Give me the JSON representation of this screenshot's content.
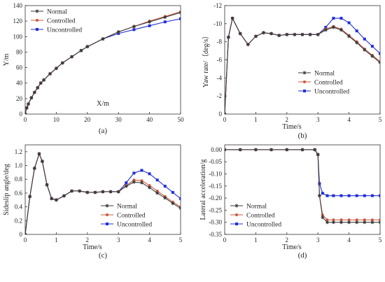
{
  "series_styles": [
    {
      "key": "normal",
      "name": "Normal",
      "color": "#3a3a3a",
      "marker": "star"
    },
    {
      "key": "controlled",
      "name": "Controlled",
      "color": "#c8583c",
      "marker": "circle"
    },
    {
      "key": "uncontrolled",
      "name": "Uncontrolled",
      "color": "#1f2fd6",
      "marker": "square"
    }
  ],
  "chart_data": [
    {
      "id": "a",
      "type": "line",
      "caption": "(a)",
      "xlabel": "X/m",
      "ylabel": "Y/m",
      "xlim": [
        0,
        50
      ],
      "ylim": [
        0,
        140
      ],
      "xticks": [
        0,
        10,
        20,
        30,
        40,
        50
      ],
      "yticks": [
        0,
        20,
        40,
        60,
        80,
        100,
        120,
        140
      ],
      "y_reversed": false,
      "grid": false,
      "legend_position": "top-left",
      "series": [
        {
          "name": "Normal",
          "x": [
            0,
            0.5,
            1,
            2,
            3,
            4,
            5,
            6,
            8,
            10,
            12,
            15,
            18,
            20,
            25,
            30,
            35,
            40,
            45,
            50
          ],
          "y": [
            0,
            8,
            13,
            21,
            28,
            34,
            40,
            44,
            52,
            59,
            66,
            74,
            82,
            87,
            97,
            106,
            113,
            119,
            125,
            131
          ]
        },
        {
          "name": "Controlled",
          "x": [
            0,
            0.5,
            1,
            2,
            3,
            4,
            5,
            6,
            8,
            10,
            12,
            15,
            18,
            20,
            25,
            30,
            35,
            40,
            45,
            50
          ],
          "y": [
            0,
            8,
            13,
            21,
            28,
            34,
            40,
            44,
            52,
            59,
            66,
            74,
            82,
            87,
            97,
            106,
            113,
            120,
            126,
            132
          ]
        },
        {
          "name": "Uncontrolled",
          "x": [
            0,
            0.5,
            1,
            2,
            3,
            4,
            5,
            6,
            8,
            10,
            12,
            15,
            18,
            20,
            25,
            30,
            35,
            40,
            45,
            50
          ],
          "y": [
            0,
            8,
            13,
            21,
            28,
            34,
            40,
            44,
            52,
            59,
            66,
            74,
            82,
            87,
            97,
            104,
            109,
            114,
            119,
            123
          ]
        }
      ]
    },
    {
      "id": "b",
      "type": "line",
      "caption": "(b)",
      "xlabel": "Time/s",
      "ylabel": "Yaw rate/（deg/s）",
      "xlim": [
        0,
        5
      ],
      "ylim": [
        0,
        -12
      ],
      "xticks": [
        0,
        1,
        2,
        3,
        4,
        5
      ],
      "yticks": [
        0,
        -2,
        -4,
        -6,
        -8,
        -10,
        -12
      ],
      "y_reversed": true,
      "grid": false,
      "legend_position": "bottom-right",
      "series": [
        {
          "name": "Normal",
          "x": [
            0,
            0.12,
            0.25,
            0.5,
            0.75,
            1.0,
            1.25,
            1.5,
            1.75,
            2.0,
            2.25,
            2.5,
            2.75,
            3.0,
            3.25,
            3.5,
            3.75,
            4.0,
            4.25,
            4.5,
            4.75,
            5.0
          ],
          "y": [
            0,
            -8.5,
            -10.6,
            -8.9,
            -7.7,
            -8.6,
            -9.0,
            -8.9,
            -8.7,
            -8.8,
            -8.8,
            -8.8,
            -8.8,
            -8.8,
            -9.3,
            -9.6,
            -9.3,
            -8.6,
            -7.9,
            -7.1,
            -6.4,
            -5.7
          ]
        },
        {
          "name": "Controlled",
          "x": [
            0,
            0.12,
            0.25,
            0.5,
            0.75,
            1.0,
            1.25,
            1.5,
            1.75,
            2.0,
            2.25,
            2.5,
            2.75,
            3.0,
            3.25,
            3.5,
            3.75,
            4.0,
            4.25,
            4.5,
            4.75,
            5.0
          ],
          "y": [
            0,
            -8.5,
            -10.6,
            -8.9,
            -7.7,
            -8.6,
            -9.0,
            -8.9,
            -8.7,
            -8.8,
            -8.8,
            -8.8,
            -8.8,
            -8.8,
            -9.4,
            -9.7,
            -9.4,
            -8.7,
            -8.0,
            -7.2,
            -6.5,
            -5.8
          ]
        },
        {
          "name": "Uncontrolled",
          "x": [
            0,
            0.12,
            0.25,
            0.5,
            0.75,
            1.0,
            1.25,
            1.5,
            1.75,
            2.0,
            2.25,
            2.5,
            2.75,
            3.0,
            3.25,
            3.5,
            3.75,
            4.0,
            4.25,
            4.5,
            4.75,
            5.0
          ],
          "y": [
            0,
            -8.5,
            -10.6,
            -8.9,
            -7.7,
            -8.6,
            -9.0,
            -8.9,
            -8.7,
            -8.8,
            -8.8,
            -8.8,
            -8.8,
            -8.8,
            -9.6,
            -10.6,
            -10.6,
            -10.1,
            -9.2,
            -8.3,
            -7.5,
            -6.7
          ]
        }
      ]
    },
    {
      "id": "c",
      "type": "line",
      "caption": "(c)",
      "xlabel": "Time/s",
      "ylabel": "Sideslip angle/deg",
      "xlim": [
        0,
        5
      ],
      "ylim": [
        0,
        1.3
      ],
      "xticks": [
        0,
        1,
        2,
        3,
        4,
        5
      ],
      "yticks": [
        0,
        0.2,
        0.4,
        0.6,
        0.8,
        1.0,
        1.2
      ],
      "y_reversed": false,
      "grid": false,
      "legend_position": "bottom-right",
      "series": [
        {
          "name": "Normal",
          "x": [
            0,
            0.15,
            0.3,
            0.45,
            0.55,
            0.7,
            0.85,
            1.0,
            1.25,
            1.5,
            1.75,
            2.0,
            2.25,
            2.5,
            2.75,
            3.0,
            3.25,
            3.5,
            3.75,
            4.0,
            4.25,
            4.5,
            4.75,
            5.0
          ],
          "y": [
            0,
            0.55,
            0.96,
            1.17,
            1.06,
            0.72,
            0.52,
            0.5,
            0.56,
            0.63,
            0.63,
            0.61,
            0.61,
            0.62,
            0.62,
            0.62,
            0.7,
            0.76,
            0.75,
            0.68,
            0.6,
            0.53,
            0.45,
            0.38
          ]
        },
        {
          "name": "Controlled",
          "x": [
            0,
            0.15,
            0.3,
            0.45,
            0.55,
            0.7,
            0.85,
            1.0,
            1.25,
            1.5,
            1.75,
            2.0,
            2.25,
            2.5,
            2.75,
            3.0,
            3.25,
            3.5,
            3.75,
            4.0,
            4.25,
            4.5,
            4.75,
            5.0
          ],
          "y": [
            0,
            0.55,
            0.96,
            1.17,
            1.06,
            0.72,
            0.52,
            0.5,
            0.56,
            0.63,
            0.63,
            0.61,
            0.61,
            0.62,
            0.62,
            0.62,
            0.71,
            0.79,
            0.78,
            0.71,
            0.63,
            0.55,
            0.47,
            0.4
          ]
        },
        {
          "name": "Uncontrolled",
          "x": [
            0,
            0.15,
            0.3,
            0.45,
            0.55,
            0.7,
            0.85,
            1.0,
            1.25,
            1.5,
            1.75,
            2.0,
            2.25,
            2.5,
            2.75,
            3.0,
            3.25,
            3.5,
            3.75,
            4.0,
            4.25,
            4.5,
            4.75,
            5.0
          ],
          "y": [
            0,
            0.55,
            0.96,
            1.17,
            1.06,
            0.72,
            0.52,
            0.5,
            0.56,
            0.63,
            0.63,
            0.61,
            0.61,
            0.62,
            0.62,
            0.62,
            0.75,
            0.89,
            0.93,
            0.88,
            0.79,
            0.7,
            0.61,
            0.52
          ]
        }
      ]
    },
    {
      "id": "d",
      "type": "line",
      "caption": "(d)",
      "xlabel": "Time/s",
      "ylabel": "Lateral acceleration/g",
      "xlim": [
        0,
        5
      ],
      "ylim": [
        -0.35,
        0.02
      ],
      "xticks": [
        0,
        1,
        2,
        3,
        4,
        5
      ],
      "yticks": [
        0.0,
        -0.05,
        -0.1,
        -0.15,
        -0.2,
        -0.25,
        -0.3,
        -0.35
      ],
      "y_reversed": false,
      "grid": false,
      "legend_position": "bottom-left",
      "series": [
        {
          "name": "Normal",
          "x": [
            0,
            0.5,
            1,
            1.5,
            2,
            2.5,
            2.9,
            3.0,
            3.05,
            3.15,
            3.3,
            3.5,
            3.75,
            4.0,
            4.25,
            4.5,
            4.75,
            5.0
          ],
          "y": [
            0,
            0,
            0,
            0,
            0,
            0,
            0,
            -0.02,
            -0.19,
            -0.28,
            -0.3,
            -0.3,
            -0.3,
            -0.3,
            -0.3,
            -0.3,
            -0.3,
            -0.3
          ]
        },
        {
          "name": "Controlled",
          "x": [
            0,
            0.5,
            1,
            1.5,
            2,
            2.5,
            2.9,
            3.0,
            3.05,
            3.15,
            3.3,
            3.5,
            3.75,
            4.0,
            4.25,
            4.5,
            4.75,
            5.0
          ],
          "y": [
            0,
            0,
            0,
            0,
            0,
            0,
            0,
            -0.02,
            -0.19,
            -0.27,
            -0.29,
            -0.29,
            -0.29,
            -0.29,
            -0.29,
            -0.29,
            -0.29,
            -0.29
          ]
        },
        {
          "name": "Uncontrolled",
          "x": [
            0,
            0.5,
            1,
            1.5,
            2,
            2.5,
            2.9,
            3.0,
            3.05,
            3.15,
            3.3,
            3.5,
            3.75,
            4.0,
            4.25,
            4.5,
            4.75,
            5.0
          ],
          "y": [
            0,
            0,
            0,
            0,
            0,
            0,
            0,
            -0.02,
            -0.14,
            -0.18,
            -0.19,
            -0.19,
            -0.19,
            -0.19,
            -0.19,
            -0.19,
            -0.19,
            -0.19
          ]
        }
      ]
    }
  ]
}
